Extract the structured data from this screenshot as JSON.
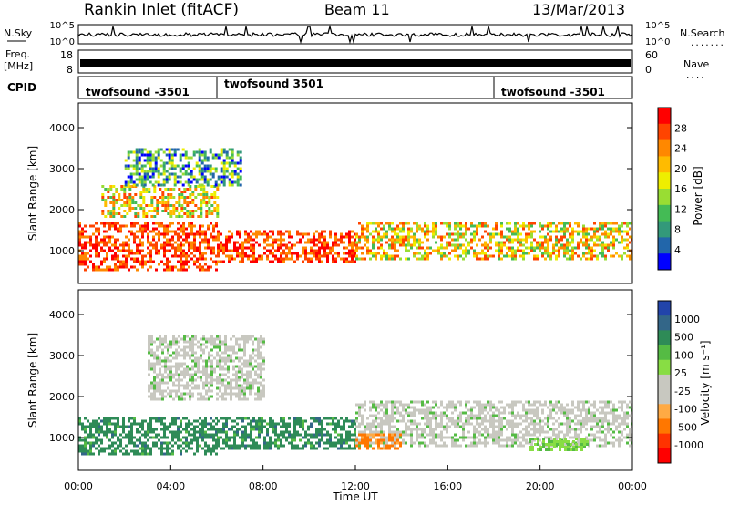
{
  "header": {
    "station": "Rankin Inlet (fitACF)",
    "beam": "Beam 11",
    "date": "13/Mar/2013"
  },
  "noise_panel": {
    "left_label": "N.Sky",
    "left_ticks": [
      "10^5",
      "10^0"
    ],
    "right_label": "N.Search",
    "right_ticks": [
      "10^5",
      "10^0"
    ]
  },
  "freq_panel": {
    "left_label_1": "Freq.",
    "left_label_2": "[MHz]",
    "left_ticks": [
      "18",
      "8"
    ],
    "right_label": "Nave",
    "right_ticks": [
      "60",
      "0"
    ]
  },
  "cpid_panel": {
    "label": "CPID",
    "modes": [
      {
        "start_hour": 0.0,
        "name": "twofsound -3501"
      },
      {
        "start_hour": 6.0,
        "name": "twofsound 3501"
      },
      {
        "start_hour": 18.0,
        "name": "twofsound -3501"
      }
    ]
  },
  "chart_data": [
    {
      "type": "heatmap",
      "quantity": "Power",
      "ylabel": "Slant Range [km]",
      "yticks": [
        "1000",
        "2000",
        "3000",
        "4000"
      ],
      "ylim": [
        200,
        4600
      ],
      "xlim": [
        0,
        24
      ],
      "colorbar": {
        "label": "Power [dB]",
        "ticks": [
          "28",
          "24",
          "20",
          "16",
          "12",
          "8",
          "4"
        ],
        "colors": [
          "#ff0000",
          "#ff4400",
          "#ff8800",
          "#ffbb00",
          "#eeee00",
          "#99dd33",
          "#44bb55",
          "#33997a",
          "#2266aa",
          "#0000ff"
        ]
      },
      "echo_bands": [
        {
          "t0": 0.0,
          "t1": 6.0,
          "r0": 500,
          "r1": 1700,
          "level": "high"
        },
        {
          "t0": 6.0,
          "t1": 12.0,
          "r0": 700,
          "r1": 1500,
          "level": "high"
        },
        {
          "t0": 12.0,
          "t1": 24.0,
          "r0": 800,
          "r1": 1700,
          "level": "mid"
        },
        {
          "t0": 1.0,
          "t1": 6.0,
          "r0": 1800,
          "r1": 2600,
          "level": "mid"
        },
        {
          "t0": 2.0,
          "t1": 7.0,
          "r0": 2600,
          "r1": 3500,
          "level": "low"
        }
      ]
    },
    {
      "type": "heatmap",
      "quantity": "Velocity",
      "ylabel": "Slant Range [km]",
      "yticks": [
        "1000",
        "2000",
        "3000",
        "4000"
      ],
      "ylim": [
        200,
        4600
      ],
      "xlim": [
        0,
        24
      ],
      "xticks": [
        "00:00",
        "04:00",
        "08:00",
        "12:00",
        "16:00",
        "20:00",
        "00:00"
      ],
      "xlabel": "Time UT",
      "colorbar": {
        "label": "Velocity [m s⁻¹]",
        "ticks": [
          "1000",
          "500",
          "100",
          "25",
          "-25",
          "-100",
          "-500",
          "-1000"
        ],
        "colors": [
          "#2244aa",
          "#336688",
          "#2e8b57",
          "#55bb44",
          "#88dd44",
          "#c8c8c0",
          "#c8c8c0",
          "#ffaa44",
          "#ff7700",
          "#ff3300",
          "#ff0000"
        ]
      },
      "echo_bands": [
        {
          "t0": 0.0,
          "t1": 6.0,
          "r0": 600,
          "r1": 1500,
          "level": "positive"
        },
        {
          "t0": 6.0,
          "t1": 12.0,
          "r0": 700,
          "r1": 1500,
          "level": "positive"
        },
        {
          "t0": 12.0,
          "t1": 24.0,
          "r0": 800,
          "r1": 1900,
          "level": "near-zero"
        },
        {
          "t0": 3.0,
          "t1": 8.0,
          "r0": 1900,
          "r1": 3500,
          "level": "near-zero"
        },
        {
          "t0": 12.0,
          "t1": 14.0,
          "r0": 700,
          "r1": 1100,
          "level": "negative"
        },
        {
          "t0": 19.5,
          "t1": 22.0,
          "r0": 700,
          "r1": 1000,
          "level": "low-positive"
        }
      ]
    }
  ]
}
